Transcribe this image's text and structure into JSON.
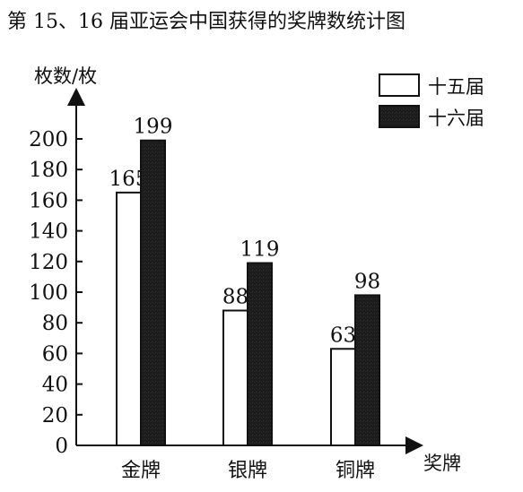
{
  "chart_data": {
    "type": "bar",
    "title": "第 15、16 届亚运会中国获得的奖牌数统计图",
    "ylabel": "枚数/枚",
    "xlabel": "奖牌",
    "categories": [
      "金牌",
      "银牌",
      "铜牌"
    ],
    "series": [
      {
        "name": "十五届",
        "values": [
          165,
          88,
          63
        ],
        "color": "#ffffff"
      },
      {
        "name": "十六届",
        "values": [
          199,
          119,
          98
        ],
        "color": "#1c1c1c"
      }
    ],
    "ylim": [
      0,
      200
    ],
    "yticks": [
      "0",
      "20",
      "40",
      "60",
      "80",
      "100",
      "120",
      "140",
      "160",
      "180",
      "200"
    ],
    "grid": false,
    "legend_position": "top-right"
  }
}
